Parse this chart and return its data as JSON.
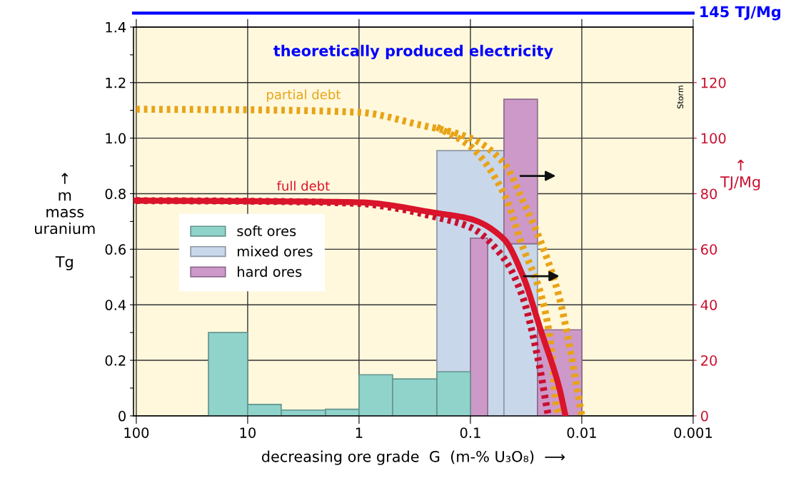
{
  "chart_data": {
    "type": "histogram",
    "title": "theoretically produced electricity",
    "xlabel": "decreasing ore grade  G  (m-% U₃O₈)  ⟶",
    "ylabel": "↑\nm\nmass\nuranium\n\nTg",
    "y2label": "↑\nTJ/Mg",
    "log": "x",
    "xlim": [
      106,
      0.001
    ],
    "xticks": [
      100,
      10,
      1,
      0.1,
      0.01,
      0.001
    ],
    "ylim": [
      0,
      1.4
    ],
    "yticks": [
      0,
      {
        "value": 0.1,
        "label": null
      },
      0.2,
      {
        "value": 0.3,
        "label": null
      },
      0.4,
      {
        "value": 0.5,
        "label": null
      },
      0.6,
      {
        "value": 0.7,
        "label": null
      },
      0.8,
      {
        "value": 0.9,
        "label": null
      },
      {
        "value": 1,
        "label": "1.0"
      },
      {
        "value": 1.1,
        "label": null
      },
      1.2,
      {
        "value": 1.3,
        "label": null
      },
      1.4
    ],
    "y2lim": [
      0,
      140
    ],
    "y2ticks": [
      0,
      20,
      40,
      60,
      80,
      100,
      120
    ],
    "grid": true,
    "legend": "left",
    "series": [
      {
        "name": "mixed ores",
        "color": "#c9d7ea",
        "bins": [
          0.2,
          0.05,
          0.025
        ],
        "values": [
          0.955,
          0.62
        ]
      },
      {
        "name": "hard ores",
        "color": "#cc99c9",
        "bins": [
          0.1,
          0.07,
          0.05,
          0.025,
          0.01
        ],
        "base": [
          0,
          null,
          0.62,
          0
        ],
        "values": [
          0.64,
          null,
          0.52,
          0.31
        ]
      },
      {
        "name": "soft ores",
        "color": "#8fd3cb",
        "bins": [
          22.5,
          10,
          5,
          2,
          1,
          0.5,
          0.2,
          0.1
        ],
        "values": [
          0.3,
          0.041,
          0.021,
          0.024,
          0.148,
          0.133,
          0.159
        ]
      },
      {
        "name": "partial debt",
        "type": "line",
        "axis": "y2",
        "color": "#e8a317",
        "line_style": "dotted",
        "x": [
          100,
          10,
          1,
          0.3,
          0.1,
          0.05,
          0.033,
          0.022,
          0.016,
          0.013,
          0.01
        ],
        "values": [
          110.4,
          110.2,
          109.3,
          105,
          100,
          91,
          76.5,
          60,
          43,
          26,
          0
        ]
      },
      {
        "type": "line",
        "axis": "y2",
        "color": "#e8a317",
        "line_style": "dotted",
        "x": [
          0.2,
          0.1,
          0.05,
          0.034,
          0.023,
          0.019,
          0.017,
          0.016
        ],
        "values": [
          104,
          97,
          80,
          61,
          43,
          26,
          4,
          0
        ]
      },
      {
        "type": "line",
        "axis": "y2",
        "color": "#c8102e",
        "line_style": "dotted",
        "x": [
          100,
          10,
          1,
          0.5,
          0.2,
          0.1,
          0.05,
          0.034,
          0.025,
          0.02
        ],
        "values": [
          77.5,
          77.3,
          76.5,
          75,
          71.5,
          67.9,
          56.7,
          42.9,
          21.5,
          0
        ]
      },
      {
        "name": "full debt",
        "type": "line",
        "axis": "y2",
        "color": "#d9142b",
        "line_style": "solid",
        "x": [
          100,
          10,
          1,
          0.2,
          0.1,
          0.05,
          0.034,
          0.023,
          0.016,
          0.014
        ],
        "values": [
          77.5,
          77.3,
          76.9,
          73,
          70.9,
          63.6,
          50.7,
          30,
          10.4,
          0
        ]
      }
    ],
    "ref_lines": [
      {
        "axis": "y2",
        "value": 145,
        "label": "145 TJ/Mg",
        "color": "#0000ff"
      }
    ],
    "annotations": [
      "Storm"
    ]
  }
}
